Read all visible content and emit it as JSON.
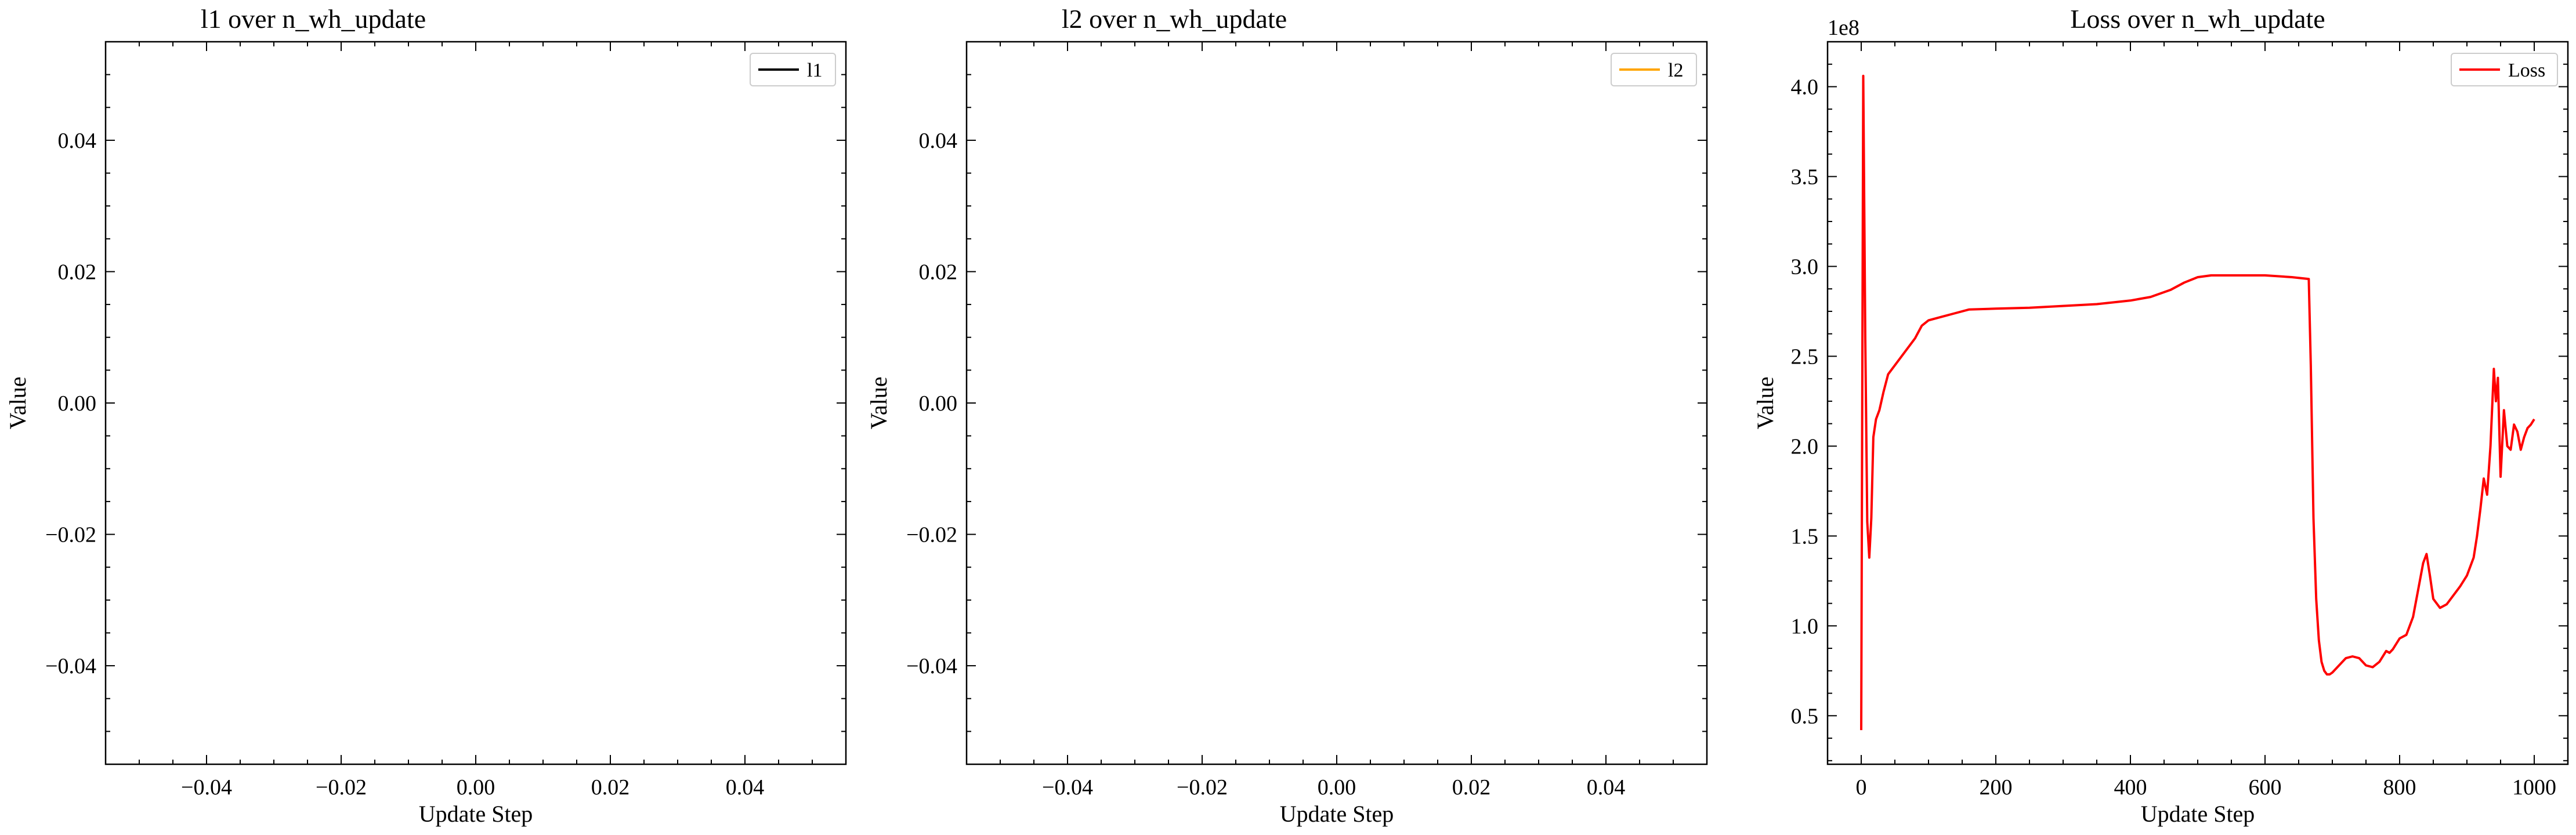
{
  "chart_data": [
    {
      "type": "line",
      "title": "l1 over n_wh_update",
      "xlabel": "Update Step",
      "ylabel": "Value",
      "xlim": [
        -0.055,
        0.055
      ],
      "ylim": [
        -0.055,
        0.055
      ],
      "xticks": [
        -0.04,
        -0.02,
        0.0,
        0.02,
        0.04
      ],
      "xtick_labels": [
        "−0.04",
        "−0.02",
        "0.00",
        "0.02",
        "0.04"
      ],
      "yticks": [
        -0.04,
        -0.02,
        0.0,
        0.02,
        0.04
      ],
      "ytick_labels": [
        "−0.04",
        "−0.02",
        "0.00",
        "0.02",
        "0.04"
      ],
      "legend_position": "top-right",
      "series": [
        {
          "name": "l1",
          "color": "#000000",
          "x": [],
          "y": []
        }
      ]
    },
    {
      "type": "line",
      "title": "l2 over n_wh_update",
      "xlabel": "Update Step",
      "ylabel": "Value",
      "xlim": [
        -0.055,
        0.055
      ],
      "ylim": [
        -0.055,
        0.055
      ],
      "xticks": [
        -0.04,
        -0.02,
        0.0,
        0.02,
        0.04
      ],
      "xtick_labels": [
        "−0.04",
        "−0.02",
        "0.00",
        "0.02",
        "0.04"
      ],
      "yticks": [
        -0.04,
        -0.02,
        0.0,
        0.02,
        0.04
      ],
      "ytick_labels": [
        "−0.04",
        "−0.02",
        "0.00",
        "0.02",
        "0.04"
      ],
      "legend_position": "top-right",
      "series": [
        {
          "name": "l2",
          "color": "#ffa500",
          "x": [],
          "y": []
        }
      ]
    },
    {
      "type": "line",
      "title": "Loss over n_wh_update",
      "xlabel": "Update Step",
      "ylabel": "Value",
      "y_offset_label": "1e8",
      "xlim": [
        -50,
        1050
      ],
      "ylim": [
        0.23,
        4.25
      ],
      "xticks": [
        0,
        200,
        400,
        600,
        800,
        1000
      ],
      "xtick_labels": [
        "0",
        "200",
        "400",
        "600",
        "800",
        "1000"
      ],
      "yticks": [
        0.5,
        1.0,
        1.5,
        2.0,
        2.5,
        3.0,
        3.5,
        4.0
      ],
      "ytick_labels": [
        "0.5",
        "1.0",
        "1.5",
        "2.0",
        "2.5",
        "3.0",
        "3.5",
        "4.0"
      ],
      "legend_position": "top-right",
      "series": [
        {
          "name": "Loss",
          "color": "#ff0000",
          "x": [
            0,
            3,
            6,
            9,
            12,
            15,
            18,
            22,
            27,
            33,
            40,
            50,
            60,
            70,
            80,
            90,
            100,
            120,
            140,
            160,
            200,
            250,
            300,
            350,
            400,
            430,
            460,
            480,
            500,
            520,
            540,
            560,
            600,
            640,
            665,
            668,
            672,
            676,
            680,
            684,
            688,
            692,
            696,
            700,
            710,
            720,
            730,
            740,
            750,
            760,
            770,
            780,
            785,
            790,
            800,
            810,
            820,
            830,
            835,
            840,
            845,
            850,
            860,
            870,
            880,
            890,
            900,
            910,
            915,
            920,
            925,
            930,
            935,
            940,
            943,
            946,
            950,
            955,
            960,
            965,
            970,
            975,
            980,
            985,
            990,
            995,
            1000
          ],
          "y": [
            0.42,
            4.06,
            2.6,
            1.58,
            1.38,
            1.6,
            2.05,
            2.15,
            2.2,
            2.3,
            2.4,
            2.45,
            2.5,
            2.55,
            2.6,
            2.67,
            2.7,
            2.72,
            2.74,
            2.76,
            2.765,
            2.77,
            2.78,
            2.79,
            2.81,
            2.83,
            2.87,
            2.91,
            2.94,
            2.95,
            2.95,
            2.95,
            2.95,
            2.94,
            2.93,
            2.45,
            1.6,
            1.15,
            0.92,
            0.8,
            0.75,
            0.73,
            0.73,
            0.74,
            0.78,
            0.82,
            0.83,
            0.82,
            0.78,
            0.77,
            0.8,
            0.86,
            0.85,
            0.87,
            0.93,
            0.95,
            1.05,
            1.25,
            1.35,
            1.4,
            1.28,
            1.15,
            1.1,
            1.12,
            1.17,
            1.22,
            1.28,
            1.38,
            1.5,
            1.65,
            1.82,
            1.73,
            2.0,
            2.43,
            2.25,
            2.38,
            1.83,
            2.2,
            2.0,
            1.98,
            2.12,
            2.08,
            1.98,
            2.05,
            2.1,
            2.12,
            2.15
          ]
        }
      ]
    }
  ]
}
